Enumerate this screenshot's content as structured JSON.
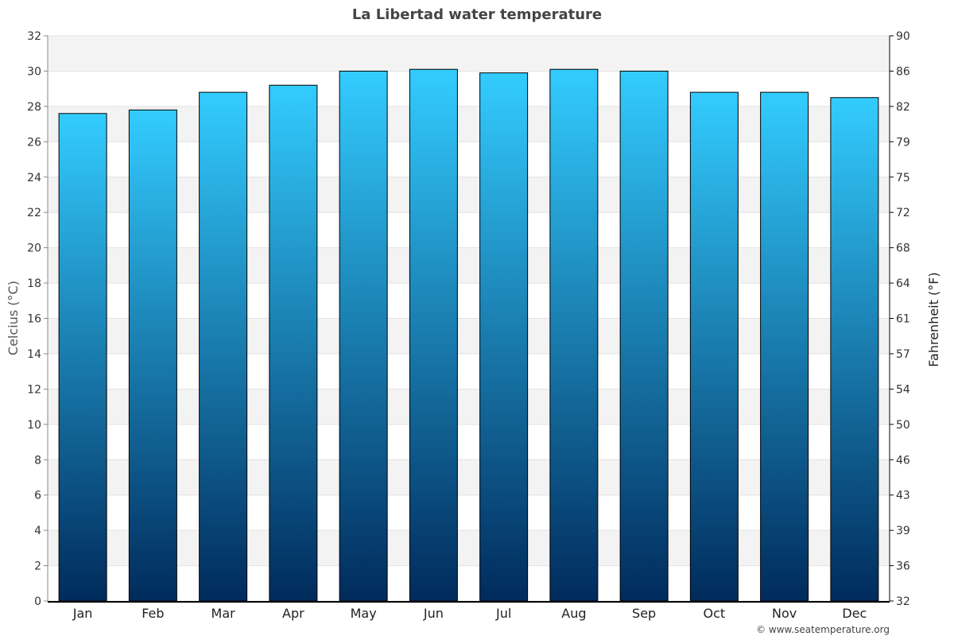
{
  "chart_data": {
    "type": "bar",
    "title": "La Libertad water temperature",
    "categories": [
      "Jan",
      "Feb",
      "Mar",
      "Apr",
      "May",
      "Jun",
      "Jul",
      "Aug",
      "Sep",
      "Oct",
      "Nov",
      "Dec"
    ],
    "values": [
      27.6,
      27.8,
      28.8,
      29.2,
      30.0,
      30.1,
      29.9,
      30.1,
      30.0,
      28.8,
      28.8,
      28.5
    ],
    "ylabel": "Celcius (°C)",
    "y2label": "Fahrenheit (°F)",
    "ylim": [
      0,
      32
    ],
    "yticks": [
      0,
      2,
      4,
      6,
      8,
      10,
      12,
      14,
      16,
      18,
      20,
      22,
      24,
      26,
      28,
      30,
      32
    ],
    "y2ticks": [
      32,
      36,
      39,
      43,
      46,
      50,
      54,
      57,
      61,
      64,
      68,
      72,
      75,
      79,
      82,
      86,
      90
    ],
    "grid": true,
    "bar_gradient": [
      "#33ccff",
      "#002b5c"
    ],
    "band_color": "#f3f3f3"
  },
  "credit": "© www.seatemperature.org"
}
